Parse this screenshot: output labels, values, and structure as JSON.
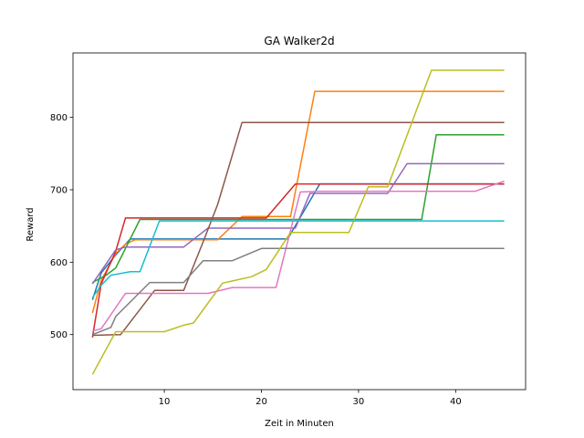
{
  "chart_data": {
    "type": "line",
    "title": "GA Walker2d",
    "xlabel": "Zeit in Minuten",
    "ylabel": "Reward",
    "xlim": [
      0.6,
      47.2
    ],
    "ylim": [
      424,
      889
    ],
    "xticks": [
      10,
      20,
      30,
      40
    ],
    "yticks": [
      500,
      600,
      700,
      800
    ],
    "grid": false,
    "legend": "none",
    "series": [
      {
        "color": "#1f77b4",
        "points": [
          [
            2.6,
            548
          ],
          [
            3.5,
            585
          ],
          [
            5.0,
            610
          ],
          [
            6.5,
            632
          ],
          [
            15,
            632
          ],
          [
            22.7,
            632
          ],
          [
            26,
            708
          ],
          [
            45,
            708
          ]
        ]
      },
      {
        "color": "#ff7f0e",
        "points": [
          [
            2.6,
            530
          ],
          [
            3.5,
            575
          ],
          [
            5.0,
            612
          ],
          [
            6.0,
            625
          ],
          [
            7.0,
            631
          ],
          [
            15.5,
            631
          ],
          [
            18,
            663
          ],
          [
            23,
            663
          ],
          [
            25.5,
            836
          ],
          [
            45,
            836
          ]
        ]
      },
      {
        "color": "#2ca02c",
        "points": [
          [
            2.6,
            572
          ],
          [
            4.0,
            582
          ],
          [
            5.0,
            592
          ],
          [
            7.5,
            659
          ],
          [
            36.5,
            659
          ],
          [
            38,
            776
          ],
          [
            45,
            776
          ]
        ]
      },
      {
        "color": "#d62728",
        "points": [
          [
            2.6,
            496
          ],
          [
            3.5,
            570
          ],
          [
            5.0,
            615
          ],
          [
            6.0,
            661
          ],
          [
            20.5,
            661
          ],
          [
            23.5,
            708
          ],
          [
            45,
            708
          ]
        ]
      },
      {
        "color": "#9467bd",
        "points": [
          [
            2.6,
            570
          ],
          [
            5.0,
            617
          ],
          [
            6.0,
            621
          ],
          [
            12,
            621
          ],
          [
            14.5,
            647
          ],
          [
            23.5,
            647
          ],
          [
            25,
            695
          ],
          [
            33,
            695
          ],
          [
            35,
            736
          ],
          [
            45,
            736
          ]
        ]
      },
      {
        "color": "#8c564b",
        "points": [
          [
            2.6,
            499
          ],
          [
            5.5,
            500
          ],
          [
            9.0,
            561
          ],
          [
            12,
            561
          ],
          [
            14,
            628
          ],
          [
            15.5,
            680
          ],
          [
            18,
            793
          ],
          [
            45,
            793
          ]
        ]
      },
      {
        "color": "#e377c2",
        "points": [
          [
            2.6,
            505
          ],
          [
            3.5,
            508
          ],
          [
            6.0,
            557
          ],
          [
            14.5,
            557
          ],
          [
            17,
            565
          ],
          [
            21.5,
            565
          ],
          [
            24,
            697
          ],
          [
            26,
            698
          ],
          [
            42,
            698
          ],
          [
            45,
            712
          ]
        ]
      },
      {
        "color": "#7f7f7f",
        "points": [
          [
            2.6,
            500
          ],
          [
            4.5,
            510
          ],
          [
            5.0,
            525
          ],
          [
            8.5,
            572
          ],
          [
            12,
            572
          ],
          [
            14,
            602
          ],
          [
            17,
            602
          ],
          [
            20,
            619
          ],
          [
            45,
            619
          ]
        ]
      },
      {
        "color": "#bcbd22",
        "points": [
          [
            2.6,
            445
          ],
          [
            5.0,
            504
          ],
          [
            10,
            504
          ],
          [
            12,
            513
          ],
          [
            13,
            516
          ],
          [
            16,
            571
          ],
          [
            19,
            580
          ],
          [
            20.5,
            590
          ],
          [
            23,
            641
          ],
          [
            29,
            641
          ],
          [
            31,
            704
          ],
          [
            33,
            704
          ],
          [
            37.5,
            865
          ],
          [
            45,
            865
          ]
        ]
      },
      {
        "color": "#17becf",
        "points": [
          [
            2.6,
            551
          ],
          [
            3.5,
            568
          ],
          [
            4.5,
            582
          ],
          [
            6.5,
            587
          ],
          [
            7.5,
            587
          ],
          [
            9.5,
            657
          ],
          [
            45,
            657
          ]
        ]
      }
    ]
  }
}
